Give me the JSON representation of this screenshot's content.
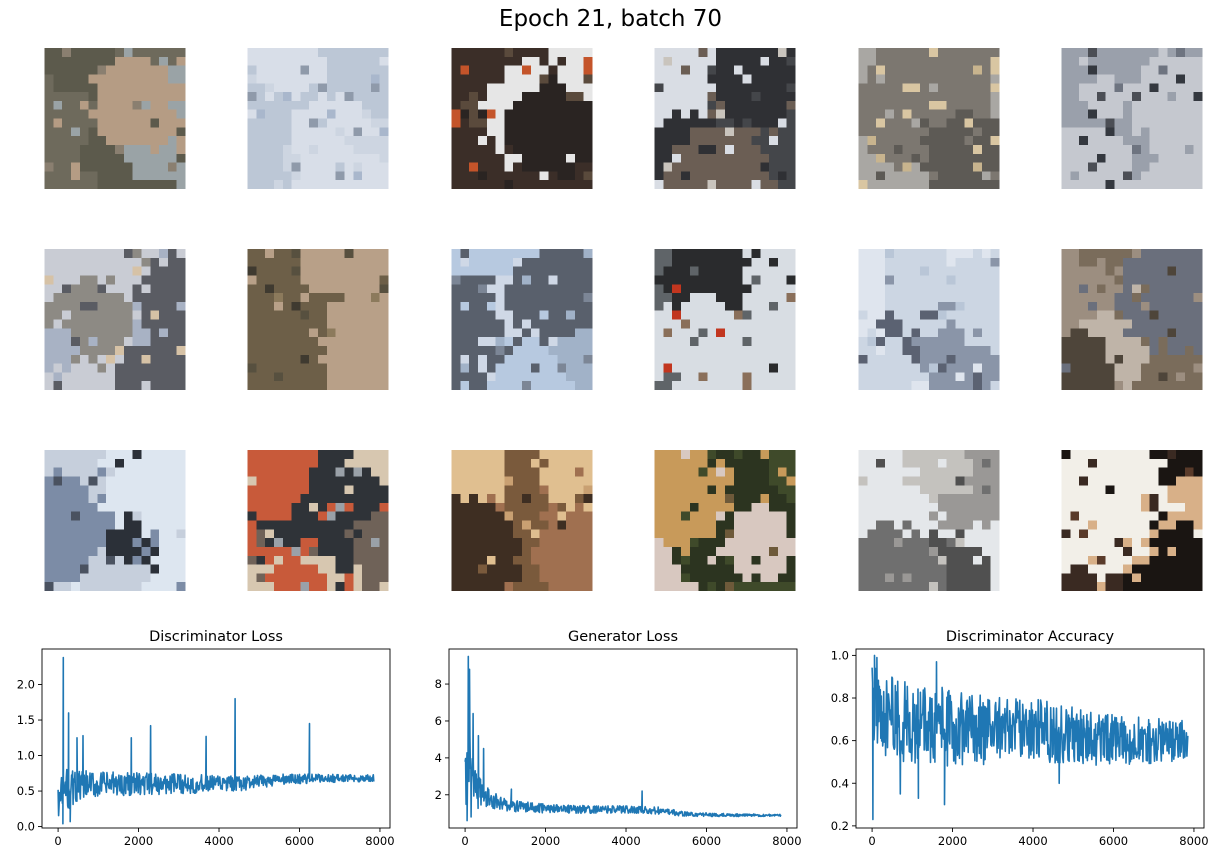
{
  "figure": {
    "suptitle": "Epoch 21, batch 70",
    "image_grid": {
      "rows": 3,
      "cols": 6,
      "tiles": [
        {
          "palette": [
            "#6e6a5c",
            "#8a7f70",
            "#9aa3a6",
            "#5c5a4c",
            "#b59c84"
          ]
        },
        {
          "palette": [
            "#bcc7d6",
            "#a9b7cc",
            "#cdd5e1",
            "#8f9aaa",
            "#d8dee8"
          ]
        },
        {
          "palette": [
            "#3b2e28",
            "#c4542a",
            "#e6e6e6",
            "#5a4a3c",
            "#2a2422"
          ]
        },
        {
          "palette": [
            "#d9dde4",
            "#44464a",
            "#6b5e54",
            "#c9c4bd",
            "#2f3034"
          ]
        },
        {
          "palette": [
            "#a9a7a3",
            "#d9c6a2",
            "#7c7770",
            "#c8b48e",
            "#5d5a55"
          ]
        },
        {
          "palette": [
            "#9aa0ab",
            "#34383f",
            "#6e7480",
            "#c5c8cf",
            "#4b4e55"
          ]
        },
        {
          "palette": [
            "#c9ccd4",
            "#8d8a84",
            "#d6c2a6",
            "#5a5c63",
            "#a8b2c4"
          ]
        },
        {
          "palette": [
            "#6d5f48",
            "#8c7a5c",
            "#3f3a30",
            "#b8a088",
            "#57503f"
          ]
        },
        {
          "palette": [
            "#b7c9e0",
            "#7c8696",
            "#cfd8e6",
            "#59606c",
            "#a1b2c8"
          ]
        },
        {
          "palette": [
            "#5f6468",
            "#c2361f",
            "#2a2b2d",
            "#d8dde3",
            "#8a6f5a"
          ]
        },
        {
          "palette": [
            "#dfe5ee",
            "#b9c6d7",
            "#5b6272",
            "#ccd6e3",
            "#8a95a8"
          ]
        },
        {
          "palette": [
            "#7a6c5b",
            "#9c8e80",
            "#4e453a",
            "#bfb4a8",
            "#6a6f7c"
          ]
        },
        {
          "palette": [
            "#dde6f0",
            "#2b3038",
            "#7c8ca6",
            "#c6cfdc",
            "#4a5260"
          ]
        },
        {
          "palette": [
            "#d7c7b0",
            "#2f3338",
            "#c85a3a",
            "#6f6258",
            "#9aa1a8"
          ]
        },
        {
          "palette": [
            "#7a5a3c",
            "#c9a072",
            "#3e2e22",
            "#e0bf90",
            "#a07050"
          ]
        },
        {
          "palette": [
            "#3f4a2a",
            "#6e5a3a",
            "#c89a5a",
            "#d8c8c0",
            "#2c3420"
          ]
        },
        {
          "palette": [
            "#e4e7ea",
            "#6f6f6f",
            "#9a9896",
            "#c4c2be",
            "#505050"
          ]
        },
        {
          "palette": [
            "#1a1512",
            "#f2efe8",
            "#5a3b2a",
            "#d8b088",
            "#3a2a22"
          ]
        }
      ]
    }
  },
  "chart_data": [
    {
      "type": "line",
      "title": "Discriminator Loss",
      "xlabel": "",
      "ylabel": "",
      "xlim": [
        -400,
        8250
      ],
      "ylim": [
        -0.02,
        2.5
      ],
      "xticks": [
        0,
        2000,
        4000,
        6000,
        8000
      ],
      "xtick_labels": [
        "0",
        "2000",
        "4000",
        "6000",
        "8000"
      ],
      "yticks": [
        0.0,
        0.5,
        1.0,
        1.5,
        2.0
      ],
      "ytick_labels": [
        "0.0",
        "0.5",
        "1.0",
        "1.5",
        "2.0"
      ],
      "grid": false,
      "color": "#1f77b4",
      "series": [
        {
          "anchors_x": [
            0,
            150,
            400,
            800,
            1500,
            2500,
            3500,
            4500,
            5500,
            6500,
            7850
          ],
          "anchors_center": [
            0.35,
            0.5,
            0.55,
            0.58,
            0.6,
            0.6,
            0.6,
            0.6,
            0.66,
            0.68,
            0.68
          ],
          "anchors_spread": [
            0.22,
            0.32,
            0.25,
            0.2,
            0.17,
            0.15,
            0.13,
            0.11,
            0.08,
            0.06,
            0.05
          ],
          "spikes": [
            [
              130,
              2.38
            ],
            [
              260,
              1.6
            ],
            [
              470,
              1.25
            ],
            [
              620,
              1.28
            ],
            [
              1820,
              1.25
            ],
            [
              2300,
              1.42
            ],
            [
              3680,
              1.27
            ],
            [
              4400,
              1.8
            ],
            [
              6250,
              1.45
            ],
            [
              120,
              0.04
            ],
            [
              300,
              0.07
            ]
          ],
          "n_points": 7850
        }
      ]
    },
    {
      "type": "line",
      "title": "Generator Loss",
      "xlabel": "",
      "ylabel": "",
      "xlim": [
        -400,
        8250
      ],
      "ylim": [
        0.2,
        9.9
      ],
      "xticks": [
        0,
        2000,
        4000,
        6000,
        8000
      ],
      "xtick_labels": [
        "0",
        "2000",
        "4000",
        "6000",
        "8000"
      ],
      "yticks": [
        2,
        4,
        6,
        8
      ],
      "ytick_labels": [
        "2",
        "4",
        "6",
        "8"
      ],
      "grid": false,
      "color": "#1f77b4",
      "series": [
        {
          "anchors_x": [
            0,
            100,
            300,
            600,
            1000,
            2000,
            3000,
            4000,
            4800,
            5500,
            6500,
            7850
          ],
          "anchors_center": [
            2.5,
            4.0,
            2.2,
            1.8,
            1.45,
            1.25,
            1.2,
            1.2,
            1.15,
            0.95,
            0.9,
            0.88
          ],
          "anchors_spread": [
            1.5,
            1.6,
            1.0,
            0.5,
            0.35,
            0.25,
            0.22,
            0.2,
            0.2,
            0.12,
            0.08,
            0.06
          ],
          "spikes": [
            [
              80,
              9.5
            ],
            [
              110,
              8.8
            ],
            [
              200,
              6.4
            ],
            [
              330,
              5.2
            ],
            [
              460,
              4.5
            ],
            [
              1150,
              2.3
            ],
            [
              4400,
              2.2
            ],
            [
              50,
              0.6
            ],
            [
              150,
              0.8
            ]
          ],
          "n_points": 7850
        }
      ]
    },
    {
      "type": "line",
      "title": "Discriminator Accuracy",
      "xlabel": "",
      "ylabel": "",
      "xlim": [
        -400,
        8250
      ],
      "ylim": [
        0.19,
        1.03
      ],
      "xticks": [
        0,
        2000,
        4000,
        6000,
        8000
      ],
      "xtick_labels": [
        "0",
        "2000",
        "4000",
        "6000",
        "8000"
      ],
      "yticks": [
        0.2,
        0.4,
        0.6,
        0.8,
        1.0
      ],
      "ytick_labels": [
        "0.2",
        "0.4",
        "0.6",
        "0.8",
        "1.0"
      ],
      "grid": false,
      "color": "#1f77b4",
      "series": [
        {
          "anchors_x": [
            0,
            300,
            1000,
            2000,
            3000,
            4000,
            5000,
            6000,
            7000,
            7850
          ],
          "anchors_center": [
            0.75,
            0.72,
            0.68,
            0.66,
            0.65,
            0.65,
            0.63,
            0.6,
            0.6,
            0.6
          ],
          "anchors_spread": [
            0.2,
            0.2,
            0.2,
            0.18,
            0.16,
            0.15,
            0.14,
            0.12,
            0.11,
            0.1
          ],
          "spikes": [
            [
              20,
              0.23
            ],
            [
              60,
              1.0
            ],
            [
              120,
              0.99
            ],
            [
              1600,
              0.97
            ],
            [
              1800,
              0.3
            ],
            [
              700,
              0.35
            ],
            [
              4650,
              0.4
            ],
            [
              1150,
              0.33
            ]
          ],
          "n_points": 7850
        }
      ]
    }
  ]
}
